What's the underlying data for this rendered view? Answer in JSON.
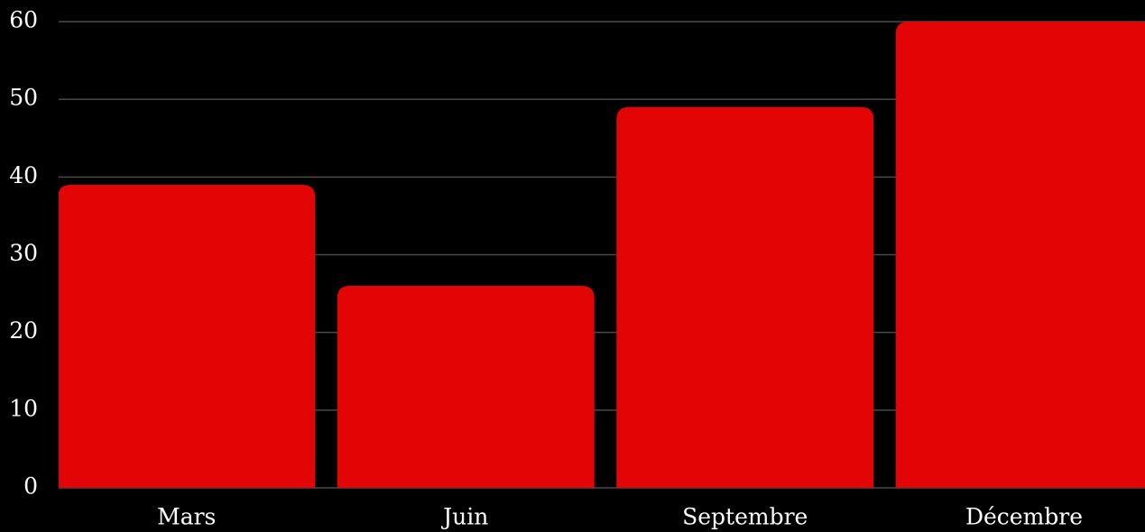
{
  "chart_data": {
    "type": "bar",
    "categories": [
      "Mars",
      "Juin",
      "Septembre",
      "Décembre"
    ],
    "values": [
      39,
      26,
      49,
      60
    ],
    "color": "#e30505",
    "ylim": [
      0,
      60
    ],
    "yticks": [
      0,
      10,
      20,
      30,
      40,
      50,
      60
    ],
    "grid": true
  }
}
